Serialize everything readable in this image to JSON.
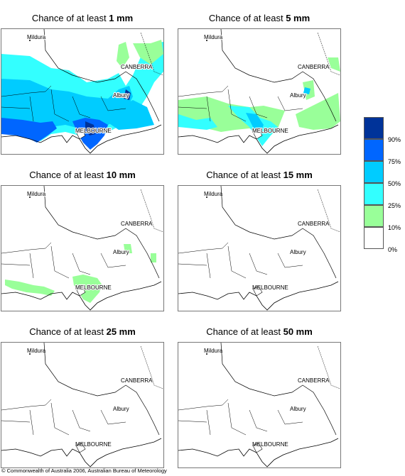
{
  "panels": [
    {
      "prefix": "Chance of at least ",
      "amount": "1 mm"
    },
    {
      "prefix": "Chance of at least ",
      "amount": "5 mm"
    },
    {
      "prefix": "Chance of at least ",
      "amount": "10 mm"
    },
    {
      "prefix": "Chance of at least ",
      "amount": "15 mm"
    },
    {
      "prefix": "Chance of at least ",
      "amount": "25 mm"
    },
    {
      "prefix": "Chance of at least ",
      "amount": "50 mm"
    }
  ],
  "places": {
    "mildura": "Mildura",
    "canberra": "CANBERRA",
    "albury": "Albury",
    "melbourne": "MELBOURNE"
  },
  "legend": {
    "labels": [
      "90%",
      "75%",
      "50%",
      "25%",
      "10%",
      "0%"
    ],
    "colors": [
      "#003399",
      "#0066ff",
      "#00ccff",
      "#33ffff",
      "#99ff99",
      "#ffffff"
    ]
  },
  "copyright": "© Commonwealth of Australia 2006, Australian Bureau of Meteorology"
}
